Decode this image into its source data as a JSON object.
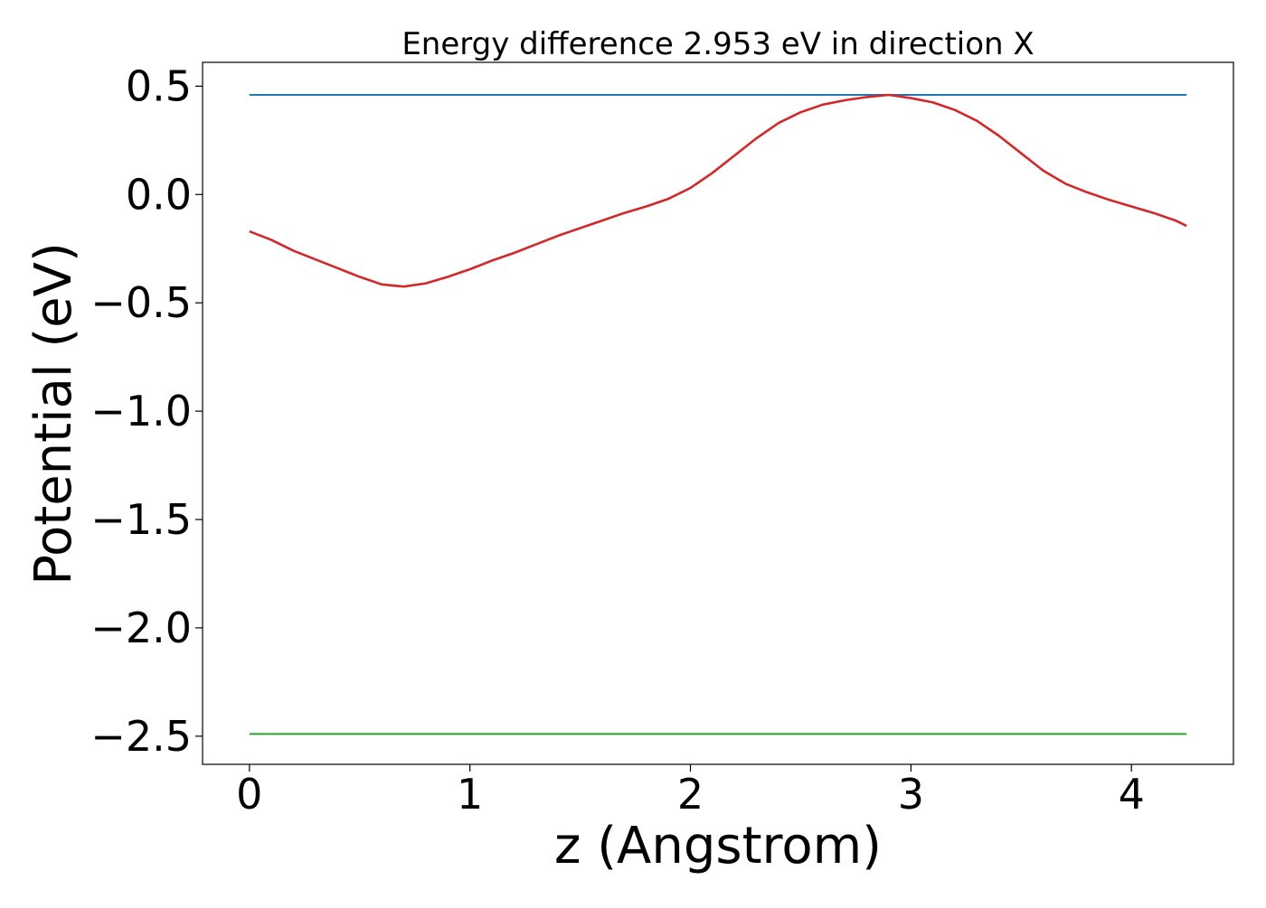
{
  "chart_data": {
    "type": "line",
    "title": "Energy difference 2.953 eV in direction X",
    "xlabel": "z (Angstrom)",
    "ylabel": "Potential (eV)",
    "xlim": [
      -0.2125,
      4.4625
    ],
    "ylim": [
      -2.63,
      0.61
    ],
    "xticks": [
      0,
      1,
      2,
      3,
      4
    ],
    "xtick_labels": [
      "0",
      "1",
      "2",
      "3",
      "4"
    ],
    "yticks": [
      0.5,
      0.0,
      -0.5,
      -1.0,
      -1.5,
      -2.0,
      -2.5
    ],
    "ytick_labels": [
      "0.5",
      "0.0",
      "−0.5",
      "−1.0",
      "−1.5",
      "−2.0",
      "−2.5"
    ],
    "grid": false,
    "series": [
      {
        "color": "#1f77b4",
        "x": [
          0,
          4.25
        ],
        "y": [
          0.46,
          0.46
        ]
      },
      {
        "color": "#2ca02c",
        "x": [
          0,
          4.25
        ],
        "y": [
          -2.49,
          -2.49
        ]
      },
      {
        "color": "#d62728",
        "x": [
          0,
          0.1,
          0.2,
          0.3,
          0.4,
          0.5,
          0.6,
          0.7,
          0.8,
          0.9,
          1.0,
          1.1,
          1.2,
          1.3,
          1.4,
          1.5,
          1.6,
          1.7,
          1.8,
          1.9,
          2.0,
          2.1,
          2.2,
          2.3,
          2.4,
          2.5,
          2.6,
          2.7,
          2.8,
          2.9,
          3.0,
          3.1,
          3.2,
          3.3,
          3.4,
          3.5,
          3.6,
          3.7,
          3.8,
          3.9,
          4.0,
          4.1,
          4.2,
          4.25
        ],
        "y": [
          -0.17,
          -0.21,
          -0.26,
          -0.3,
          -0.34,
          -0.38,
          -0.415,
          -0.425,
          -0.41,
          -0.38,
          -0.345,
          -0.305,
          -0.27,
          -0.23,
          -0.19,
          -0.155,
          -0.12,
          -0.085,
          -0.055,
          -0.02,
          0.03,
          0.1,
          0.18,
          0.26,
          0.33,
          0.38,
          0.415,
          0.435,
          0.45,
          0.46,
          0.445,
          0.425,
          0.39,
          0.34,
          0.27,
          0.19,
          0.11,
          0.05,
          0.01,
          -0.025,
          -0.055,
          -0.085,
          -0.12,
          -0.145
        ]
      }
    ]
  }
}
